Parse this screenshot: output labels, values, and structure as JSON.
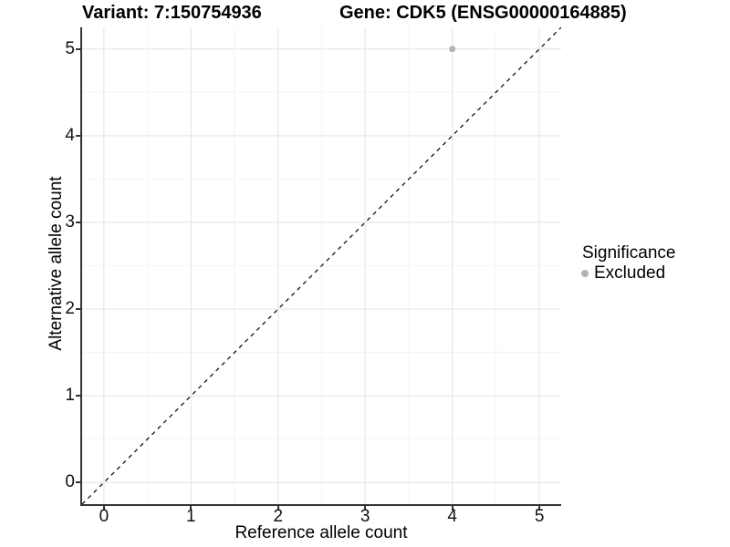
{
  "titles": {
    "variant": "Variant: 7:150754936",
    "gene": "Gene: CDK5 (ENSG00000164885)"
  },
  "axes": {
    "x": {
      "title": "Reference allele count"
    },
    "y": {
      "title": "Alternative allele count"
    }
  },
  "legend": {
    "title": "Significance",
    "items": [
      {
        "label": "Excluded",
        "color": "#b3b3b3"
      }
    ]
  },
  "chart_data": {
    "type": "scatter",
    "title_left": "Variant: 7:150754936",
    "title_right": "Gene: CDK5 (ENSG00000164885)",
    "xlabel": "Reference allele count",
    "ylabel": "Alternative allele count",
    "xlim": [
      -0.25,
      5.25
    ],
    "ylim": [
      -0.25,
      5.25
    ],
    "x_ticks": [
      0,
      1,
      2,
      3,
      4,
      5
    ],
    "y_ticks": [
      0,
      1,
      2,
      3,
      4,
      5
    ],
    "minor_ticks": [
      0.5,
      1.5,
      2.5,
      3.5,
      4.5
    ],
    "grid": true,
    "legend_position": "right",
    "series": [
      {
        "name": "Excluded",
        "color": "#b3b3b3",
        "points": [
          {
            "x": 4,
            "y": 5
          }
        ]
      }
    ],
    "reference_line": {
      "kind": "identity y=x",
      "style": "dashed",
      "color": "#111111"
    },
    "colors": {
      "major_grid": "#e8e8e8",
      "minor_grid": "#f4f4f4",
      "axis_line": "#333333",
      "point": "#b3b3b3",
      "background": "#ffffff"
    }
  }
}
